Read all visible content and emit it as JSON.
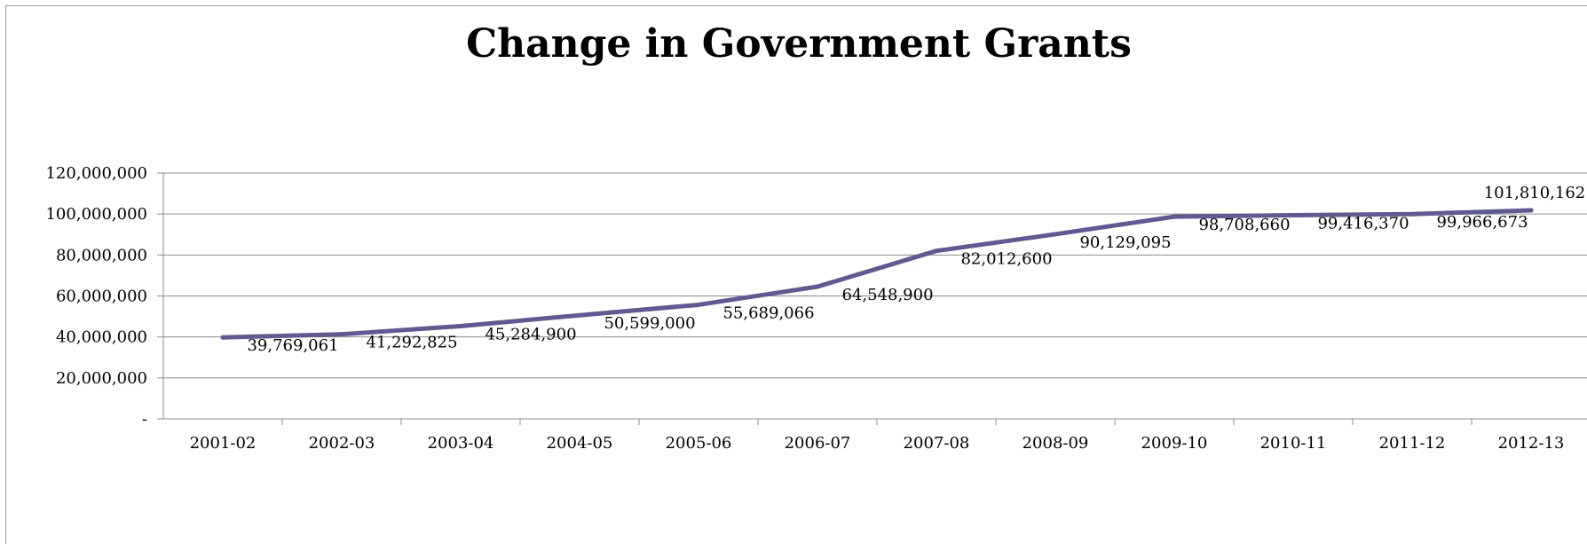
{
  "chart_data": {
    "type": "line",
    "title": "Change in Government Grants",
    "xlabel": "",
    "ylabel": "",
    "categories": [
      "2001-02",
      "2002-03",
      "2003-04",
      "2004-05",
      "2005-06",
      "2006-07",
      "2007-08",
      "2008-09",
      "2009-10",
      "2010-11",
      "2011-12",
      "2012-13"
    ],
    "series": [
      {
        "values": [
          39769061,
          41292825,
          45284900,
          50599000,
          55689066,
          64548900,
          82012600,
          90129095,
          98708660,
          99416370,
          99966673,
          101810162
        ],
        "labels": [
          "39,769,061",
          "41,292,825",
          "45,284,900",
          "50,599,000",
          "55,689,066",
          "64,548,900",
          "82,012,600",
          "90,129,095",
          "98,708,660",
          "99,416,370",
          "99,966,673",
          "101,810,162"
        ],
        "color": "#5f5a8f"
      }
    ],
    "ylim": [
      0,
      120000000
    ],
    "yticks": [
      0,
      20000000,
      40000000,
      60000000,
      80000000,
      100000000,
      120000000
    ],
    "ytick_labels": [
      "-",
      "20,000,000",
      "40,000,000",
      "60,000,000",
      "80,000,000",
      "100,000,000",
      "120,000,000"
    ],
    "grid": true,
    "legend": "none"
  }
}
